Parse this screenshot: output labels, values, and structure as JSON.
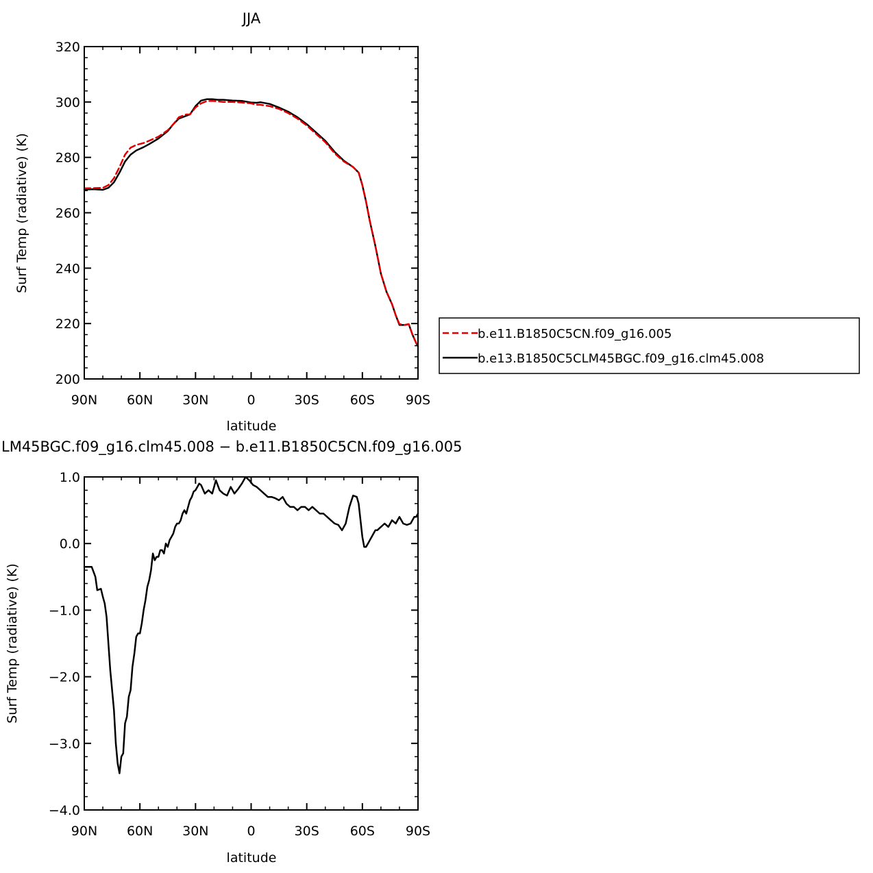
{
  "chart_data": [
    {
      "type": "line",
      "title": "JJA",
      "xlabel": "latitude",
      "ylabel": "Surf Temp (radiative) (K)",
      "xlim": [
        90,
        -90
      ],
      "ylim": [
        200,
        320
      ],
      "x_tick_values": [
        90,
        60,
        30,
        0,
        -30,
        -60,
        -90
      ],
      "x_tick_labels": [
        "90N",
        "60N",
        "30N",
        "0",
        "30S",
        "60S",
        "90S"
      ],
      "y_ticks": [
        200,
        220,
        240,
        260,
        280,
        300,
        320
      ],
      "legend": {
        "placement": "right",
        "entries": [
          "b.e11.B1850C5CN.f09_g16.005",
          "b.e13.B1850C5CLM45BGC.f09_g16.clm45.008"
        ]
      },
      "series": [
        {
          "name": "b.e11.B1850C5CN.f09_g16.005",
          "color": "#e00000",
          "dash": true,
          "x": [
            90,
            85,
            80,
            77,
            74,
            71,
            68,
            65,
            62,
            58,
            55,
            50,
            45,
            42,
            39,
            35,
            33,
            30,
            27,
            24,
            21,
            18,
            15,
            10,
            5,
            0,
            -3,
            -5,
            -10,
            -15,
            -20,
            -25,
            -30,
            -35,
            -40,
            -45,
            -50,
            -55,
            -58,
            -60,
            -62,
            -64,
            -67,
            -70,
            -73,
            -76,
            -78,
            -80,
            -83,
            -85,
            -87,
            -89,
            -90
          ],
          "values": [
            268.8,
            268.9,
            269.0,
            270.0,
            272.5,
            276.5,
            281.0,
            283.5,
            284.5,
            285.2,
            286.0,
            287.5,
            289.8,
            292.0,
            294.5,
            295.5,
            295.5,
            298.0,
            299.5,
            300.3,
            300.4,
            300.2,
            300.0,
            300.0,
            299.8,
            299.5,
            299.0,
            299.0,
            298.5,
            297.5,
            296.0,
            294.0,
            291.5,
            288.5,
            285.5,
            281.5,
            278.5,
            276.5,
            274.5,
            270.0,
            264.0,
            257.0,
            248.0,
            238.0,
            231.5,
            227.0,
            223.0,
            219.8,
            219.5,
            219.8,
            216.0,
            213.0,
            212.0
          ]
        },
        {
          "name": "b.e13.B1850C5CLM45BGC.f09_g16.clm45.008",
          "color": "#000000",
          "dash": false,
          "x": [
            90,
            85,
            80,
            77,
            74,
            71,
            68,
            65,
            62,
            58,
            55,
            50,
            45,
            42,
            39,
            35,
            33,
            30,
            27,
            24,
            21,
            18,
            15,
            10,
            5,
            0,
            -3,
            -5,
            -10,
            -15,
            -20,
            -25,
            -30,
            -35,
            -40,
            -45,
            -50,
            -55,
            -58,
            -60,
            -62,
            -64,
            -67,
            -70,
            -73,
            -76,
            -78,
            -80,
            -83,
            -85,
            -87,
            -89,
            -90
          ],
          "values": [
            268.4,
            268.5,
            268.3,
            269.0,
            271.0,
            274.5,
            278.5,
            281.0,
            282.5,
            283.7,
            284.8,
            286.8,
            289.5,
            292.0,
            294.0,
            295.0,
            295.5,
            298.5,
            300.5,
            301.0,
            301.0,
            300.8,
            300.8,
            300.5,
            300.4,
            299.8,
            299.7,
            299.9,
            299.3,
            298.0,
            296.5,
            294.5,
            292.0,
            289.0,
            286.0,
            282.0,
            278.8,
            276.5,
            274.5,
            270.0,
            264.0,
            257.0,
            248.0,
            238.0,
            231.5,
            227.0,
            223.0,
            219.5,
            219.5,
            219.8,
            216.0,
            213.0,
            211.8
          ]
        }
      ]
    },
    {
      "type": "line",
      "title": "LM45BGC.f09_g16.clm45.008 − b.e11.B1850C5CN.f09_g16.005",
      "xlabel": "latitude",
      "ylabel": "Surf Temp (radiative) (K)",
      "xlim": [
        90,
        -90
      ],
      "ylim": [
        -4,
        1
      ],
      "x_tick_values": [
        90,
        60,
        30,
        0,
        -30,
        -60,
        -90
      ],
      "x_tick_labels": [
        "90N",
        "60N",
        "30N",
        "0",
        "30S",
        "60S",
        "90S"
      ],
      "y_ticks": [
        -4,
        -3,
        -2,
        -1,
        0,
        1
      ],
      "y_tick_labels": [
        "−4.0",
        "−3.0",
        "−2.0",
        "−1.0",
        "0.0",
        "1.0"
      ],
      "series": [
        {
          "color": "#000000",
          "dash": false,
          "x": [
            90,
            86,
            84,
            83,
            81,
            80,
            79,
            78,
            76,
            75,
            74,
            73,
            72,
            71,
            70,
            69,
            68,
            67,
            66,
            65,
            64,
            63,
            62,
            61,
            60,
            59,
            58,
            57,
            56,
            55,
            54,
            53,
            52,
            51,
            50,
            49,
            48,
            47,
            46,
            45,
            44,
            43,
            42,
            41,
            40,
            39,
            38,
            37,
            36,
            35,
            34,
            33,
            32,
            31,
            30,
            29,
            28,
            27,
            25,
            23,
            21,
            19,
            17,
            15,
            13,
            11,
            9,
            7,
            5,
            3,
            1,
            -1,
            -3,
            -5,
            -7,
            -9,
            -11,
            -13,
            -15,
            -17,
            -19,
            -21,
            -23,
            -25,
            -27,
            -29,
            -31,
            -33,
            -35,
            -37,
            -39,
            -41,
            -43,
            -45,
            -47,
            -49,
            -51,
            -53,
            -55,
            -57,
            -58,
            -59,
            -60,
            -61,
            -62,
            -63,
            -64,
            -65,
            -66,
            -67,
            -68,
            -70,
            -72,
            -74,
            -76,
            -78,
            -80,
            -82,
            -84,
            -86,
            -88,
            -89,
            -90
          ],
          "values": [
            -0.35,
            -0.35,
            -0.5,
            -0.7,
            -0.68,
            -0.8,
            -0.9,
            -1.1,
            -1.9,
            -2.2,
            -2.5,
            -3.0,
            -3.3,
            -3.45,
            -3.2,
            -3.15,
            -2.7,
            -2.6,
            -2.3,
            -2.2,
            -1.85,
            -1.65,
            -1.4,
            -1.35,
            -1.35,
            -1.2,
            -1.0,
            -0.85,
            -0.65,
            -0.55,
            -0.4,
            -0.15,
            -0.25,
            -0.2,
            -0.2,
            -0.1,
            -0.1,
            -0.15,
            0.0,
            -0.05,
            0.05,
            0.1,
            0.15,
            0.25,
            0.3,
            0.3,
            0.35,
            0.45,
            0.5,
            0.45,
            0.55,
            0.65,
            0.7,
            0.78,
            0.8,
            0.85,
            0.9,
            0.88,
            0.75,
            0.8,
            0.75,
            0.95,
            0.8,
            0.75,
            0.72,
            0.85,
            0.75,
            0.82,
            0.9,
            1.0,
            0.95,
            0.88,
            0.85,
            0.8,
            0.75,
            0.7,
            0.7,
            0.68,
            0.65,
            0.7,
            0.6,
            0.55,
            0.55,
            0.5,
            0.55,
            0.55,
            0.5,
            0.55,
            0.5,
            0.45,
            0.45,
            0.4,
            0.35,
            0.3,
            0.28,
            0.2,
            0.3,
            0.55,
            0.72,
            0.7,
            0.6,
            0.35,
            0.1,
            -0.05,
            -0.05,
            0.0,
            0.05,
            0.1,
            0.15,
            0.2,
            0.2,
            0.25,
            0.3,
            0.25,
            0.35,
            0.3,
            0.4,
            0.3,
            0.28,
            0.3,
            0.4,
            0.4,
            0.45
          ]
        }
      ]
    }
  ]
}
